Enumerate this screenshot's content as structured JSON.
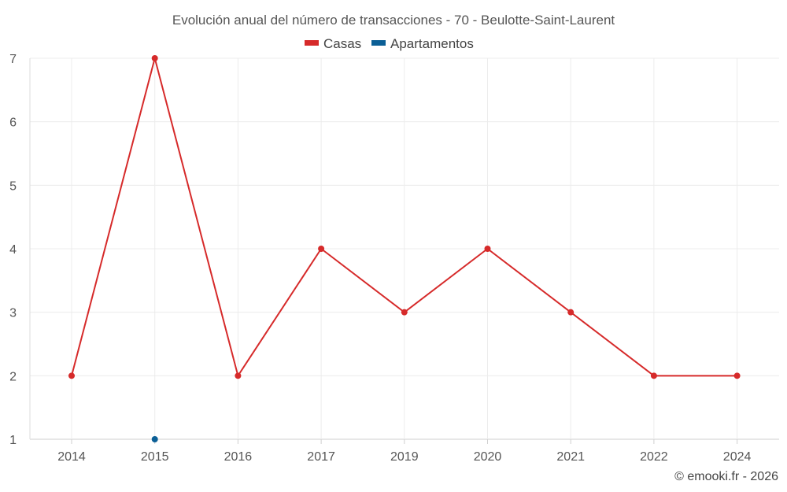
{
  "chart_data": {
    "type": "line",
    "title": "Evolución anual del número de transacciones - 70 - Beulotte-Saint-Laurent",
    "categories": [
      "2014",
      "2015",
      "2016",
      "2017",
      "2019",
      "2020",
      "2021",
      "2022",
      "2024"
    ],
    "series": [
      {
        "name": "Casas",
        "color": "#d62a2a",
        "values": [
          2,
          7,
          2,
          4,
          3,
          4,
          3,
          2,
          2
        ]
      },
      {
        "name": "Apartamentos",
        "color": "#0b5f96",
        "values": [
          null,
          1,
          null,
          null,
          null,
          null,
          null,
          null,
          null
        ]
      }
    ],
    "yticks": [
      "1",
      "2",
      "3",
      "4",
      "5",
      "6",
      "7"
    ],
    "ylim": [
      1,
      7
    ],
    "xlabel": "",
    "ylabel": "",
    "grid": true,
    "legend": "top-center",
    "credit": "© emooki.fr - 2026"
  }
}
